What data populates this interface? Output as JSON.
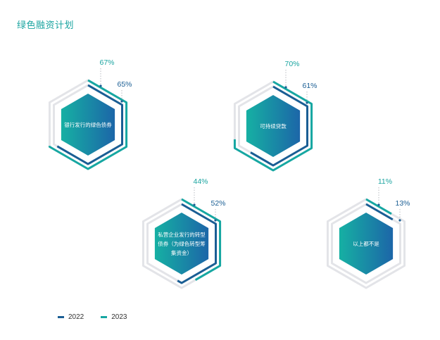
{
  "title": "绿色融资计划",
  "colors": {
    "series_2022": "#1a5e94",
    "series_2023": "#16a7a2",
    "track": "#e3e4e8",
    "hex_start": "#16b0a3",
    "hex_end": "#1c66a8",
    "value_label": "#1aa4a0",
    "value_label_2022": "#1a5e94"
  },
  "legend": [
    {
      "label": "2022",
      "color": "#1a5e94"
    },
    {
      "label": "2023",
      "color": "#16a7a2"
    }
  ],
  "chart_data": {
    "type": "radial-progress",
    "categories": [
      "银行发行的绿色债券",
      "可持续贷款",
      "私营企业发行的转型债券（为绿色转型筹集资金）",
      "以上都不是"
    ],
    "category_lines": [
      [
        "银行发行的绿色债券"
      ],
      [
        "可持续贷款"
      ],
      [
        "私营企业发行的转型",
        "债券（为绿色转型筹",
        "集资金）"
      ],
      [
        "以上都不是"
      ]
    ],
    "series": [
      {
        "name": "2023",
        "values": [
          67,
          70,
          44,
          11
        ],
        "labels": [
          "67%",
          "70%",
          "44%",
          "11%"
        ]
      },
      {
        "name": "2022",
        "values": [
          65,
          61,
          52,
          13
        ],
        "labels": [
          "65%",
          "61%",
          "52%",
          "13%"
        ]
      }
    ],
    "unit": "%",
    "max": 100
  }
}
